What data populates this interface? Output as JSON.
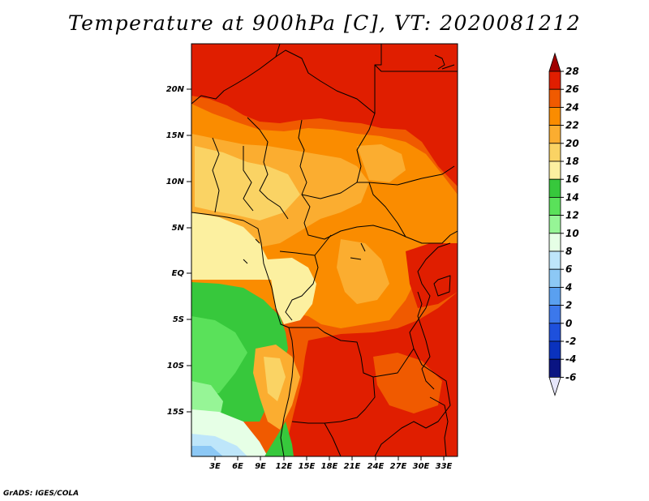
{
  "title": "Temperature at 900hPa [C], VT: 2020081212",
  "credit": "GrADS: IGES/COLA",
  "map": {
    "lon_labels": [
      "3E",
      "6E",
      "9E",
      "12E",
      "15E",
      "18E",
      "21E",
      "24E",
      "27E",
      "30E",
      "33E"
    ],
    "lat_labels": [
      "20N",
      "15N",
      "10N",
      "5N",
      "EQ",
      "5S",
      "10S",
      "15S"
    ]
  },
  "colorbar": {
    "labels": [
      "28",
      "26",
      "24",
      "22",
      "20",
      "18",
      "16",
      "14",
      "12",
      "10",
      "8",
      "6",
      "4",
      "2",
      "0",
      "-2",
      "-4",
      "-6"
    ],
    "colors": [
      "#a00000",
      "#e01e00",
      "#f05a00",
      "#fa8c00",
      "#fbad30",
      "#fad364",
      "#fcf0a0",
      "#37c83c",
      "#5ae15a",
      "#96f596",
      "#e6ffe6",
      "#bee6fa",
      "#8cc8f5",
      "#5aa0f0",
      "#3c78eb",
      "#1e50dc",
      "#0a32be",
      "#0a1482",
      "#e6e6fa"
    ]
  }
}
